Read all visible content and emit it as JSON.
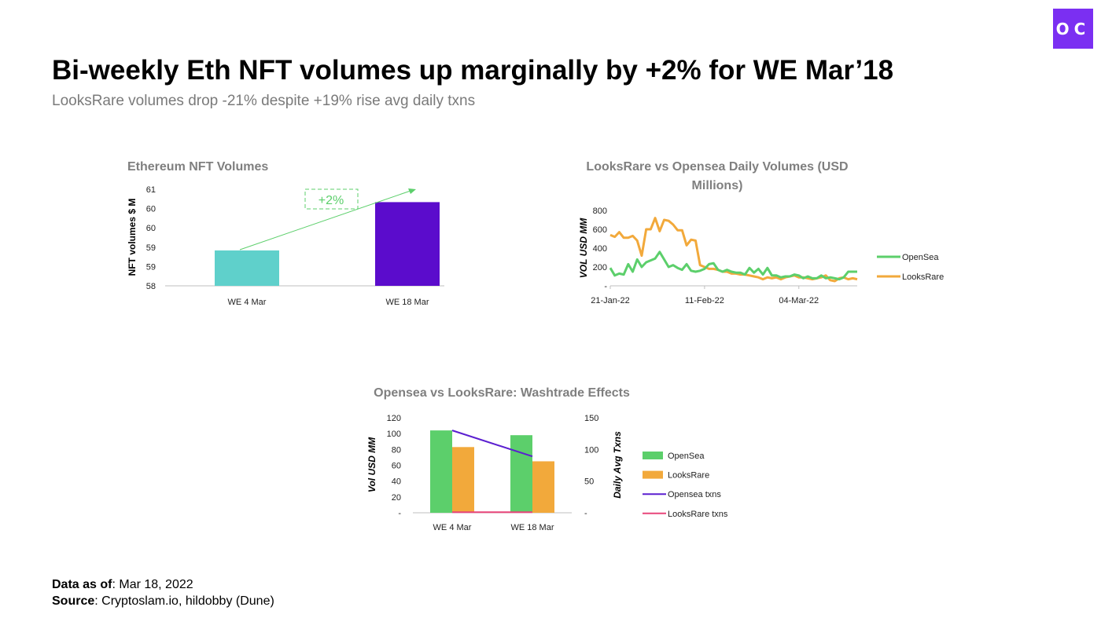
{
  "header": {
    "title": "Bi-weekly Eth NFT volumes up marginally by +2% for WE Mar’18",
    "subtitle": "LooksRare volumes drop -21% despite +19% rise avg daily txns",
    "logo": "OC"
  },
  "footer": {
    "data_as_of_label": "Data as of",
    "data_as_of": ": Mar 18, 2022",
    "source_label": "Source",
    "source": ": Cryptoslam.io, hildobby (Dune)"
  },
  "colors": {
    "brand": "#7b2ff2",
    "teal": "#5fd0cb",
    "purple": "#5b0ccc",
    "opensea": "#5ccf6b",
    "looksrare": "#f2a93b",
    "opensea_txns": "#5b1fd0",
    "looksrare_txns": "#e8457a"
  },
  "chart_data": [
    {
      "type": "bar",
      "title": "Ethereum NFT Volumes",
      "ylabel": "NFT volumes $ M",
      "categories": [
        "WE 4 Mar",
        "WE 18 Mar"
      ],
      "values": [
        59.1,
        60.6
      ],
      "ylim": [
        58,
        61
      ],
      "yticks": [
        "58",
        "59",
        "59",
        "60",
        "60",
        "61"
      ],
      "annotation": "+2%",
      "grid": false
    },
    {
      "type": "line",
      "title_lines": [
        "LooksRare vs Opensea Daily Volumes (USD",
        "Millions)"
      ],
      "ylabel": "VOL USD MM",
      "ylim": [
        0,
        800
      ],
      "yticks": [
        "-",
        "200",
        "400",
        "600",
        "800"
      ],
      "xtick_labels": [
        "21-Jan-22",
        "11-Feb-22",
        "04-Mar-22"
      ],
      "legend_position": "right",
      "x": [
        "2022-01-21",
        "2022-01-22",
        "2022-01-23",
        "2022-01-24",
        "2022-01-25",
        "2022-01-26",
        "2022-01-27",
        "2022-01-28",
        "2022-01-29",
        "2022-01-30",
        "2022-01-31",
        "2022-02-01",
        "2022-02-02",
        "2022-02-03",
        "2022-02-04",
        "2022-02-05",
        "2022-02-06",
        "2022-02-07",
        "2022-02-08",
        "2022-02-09",
        "2022-02-10",
        "2022-02-11",
        "2022-02-12",
        "2022-02-13",
        "2022-02-14",
        "2022-02-15",
        "2022-02-16",
        "2022-02-17",
        "2022-02-18",
        "2022-02-19",
        "2022-02-20",
        "2022-02-21",
        "2022-02-22",
        "2022-02-23",
        "2022-02-24",
        "2022-02-25",
        "2022-02-26",
        "2022-02-27",
        "2022-02-28",
        "2022-03-01",
        "2022-03-02",
        "2022-03-03",
        "2022-03-04",
        "2022-03-05",
        "2022-03-06",
        "2022-03-07",
        "2022-03-08",
        "2022-03-09",
        "2022-03-10",
        "2022-03-11",
        "2022-03-12",
        "2022-03-13",
        "2022-03-14",
        "2022-03-15",
        "2022-03-16",
        "2022-03-17"
      ],
      "series": [
        {
          "name": "OpenSea",
          "values": [
            190,
            110,
            130,
            120,
            230,
            150,
            280,
            200,
            250,
            270,
            290,
            360,
            280,
            200,
            220,
            190,
            170,
            230,
            160,
            150,
            160,
            180,
            230,
            240,
            170,
            150,
            170,
            150,
            140,
            140,
            120,
            190,
            140,
            180,
            120,
            190,
            110,
            110,
            90,
            100,
            100,
            120,
            110,
            80,
            100,
            80,
            80,
            110,
            80,
            90,
            80,
            70,
            90,
            150,
            150,
            150
          ]
        },
        {
          "name": "LooksRare",
          "values": [
            540,
            520,
            570,
            510,
            510,
            530,
            480,
            320,
            600,
            600,
            720,
            580,
            700,
            690,
            650,
            590,
            590,
            430,
            490,
            480,
            220,
            200,
            180,
            180,
            170,
            150,
            150,
            130,
            130,
            120,
            120,
            110,
            100,
            90,
            70,
            90,
            80,
            90,
            70,
            90,
            100,
            110,
            90,
            90,
            80,
            70,
            80,
            90,
            110,
            60,
            50,
            80,
            90,
            70,
            80,
            70
          ]
        }
      ]
    },
    {
      "type": "bar",
      "title": "Opensea vs LooksRare: Washtrade Effects",
      "ylabel": "Vol USD MM",
      "y2label": "Daily Avg Txns",
      "categories": [
        "WE 4 Mar",
        "WE 18 Mar"
      ],
      "ylim": [
        0,
        120
      ],
      "y2lim": [
        0,
        150
      ],
      "yticks": [
        "-",
        "20",
        "40",
        "60",
        "80",
        "100",
        "120"
      ],
      "y2ticks": [
        "-",
        "50",
        "100",
        "150"
      ],
      "legend_position": "right",
      "series": [
        {
          "name": "OpenSea",
          "kind": "bar",
          "axis": "left",
          "values": [
            104,
            98
          ]
        },
        {
          "name": "LooksRare",
          "kind": "bar",
          "axis": "left",
          "values": [
            83,
            65
          ]
        },
        {
          "name": "Opensea txns",
          "kind": "line",
          "axis": "right",
          "values": [
            130,
            89
          ]
        },
        {
          "name": "LooksRare txns",
          "kind": "line",
          "axis": "right",
          "values": [
            1,
            1
          ]
        }
      ]
    }
  ]
}
